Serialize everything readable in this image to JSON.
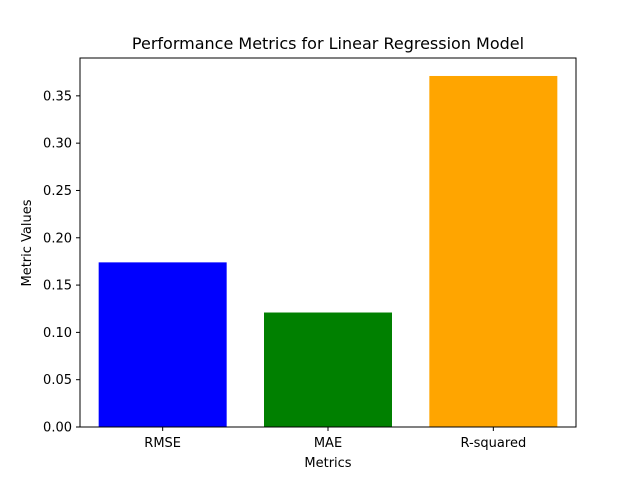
{
  "chart_data": {
    "type": "bar",
    "title": "Performance Metrics for Linear Regression Model",
    "xlabel": "Metrics",
    "ylabel": "Metric Values",
    "categories": [
      "RMSE",
      "MAE",
      "R-squared"
    ],
    "values": [
      0.174,
      0.121,
      0.371
    ],
    "colors": [
      "#0000ff",
      "#008000",
      "#ffa500"
    ],
    "ylim": [
      0,
      0.39
    ],
    "yticks": [
      0.0,
      0.05,
      0.1,
      0.15,
      0.2,
      0.25,
      0.3,
      0.35
    ],
    "ytick_labels": [
      "0.00",
      "0.05",
      "0.10",
      "0.15",
      "0.20",
      "0.25",
      "0.30",
      "0.35"
    ],
    "grid": false,
    "legend": false
  }
}
